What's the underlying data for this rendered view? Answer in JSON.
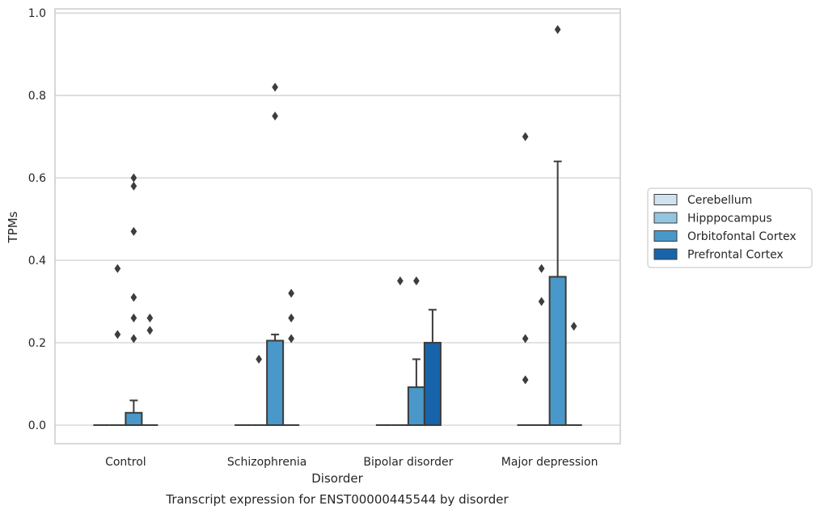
{
  "chart_data": {
    "type": "boxplot",
    "caption": "Transcript expression for ENST00000445544 by disorder",
    "xlabel": "Disorder",
    "ylabel": "TPMs",
    "ylim": [
      -0.045,
      1.01
    ],
    "yticks": [
      0.0,
      0.2,
      0.4,
      0.6,
      0.8,
      1.0
    ],
    "ytick_labels": [
      "0.0",
      "0.2",
      "0.4",
      "0.6",
      "0.8",
      "1.0"
    ],
    "grid": "horizontal",
    "legend_placement": "right",
    "categories": [
      "Control",
      "Schizophrenia",
      "Bipolar disorder",
      "Major depression"
    ],
    "series": [
      {
        "name": "Cerebellum",
        "color": "#d0e1f2",
        "boxes": [
          {
            "q1": 0,
            "median": 0,
            "q3": 0,
            "whisker_low": 0,
            "whisker_high": 0,
            "outliers": []
          },
          {
            "q1": 0,
            "median": 0,
            "q3": 0,
            "whisker_low": 0,
            "whisker_high": 0,
            "outliers": []
          },
          {
            "q1": 0,
            "median": 0,
            "q3": 0,
            "whisker_low": 0,
            "whisker_high": 0,
            "outliers": []
          },
          {
            "q1": 0,
            "median": 0,
            "q3": 0,
            "whisker_low": 0,
            "whisker_high": 0,
            "outliers": [
              0.7,
              0.21,
              0.11
            ]
          }
        ]
      },
      {
        "name": "Hipppocampus",
        "color": "#94c4df",
        "boxes": [
          {
            "q1": 0,
            "median": 0,
            "q3": 0,
            "whisker_low": 0,
            "whisker_high": 0,
            "outliers": [
              0.38,
              0.22
            ]
          },
          {
            "q1": 0,
            "median": 0,
            "q3": 0,
            "whisker_low": 0,
            "whisker_high": 0,
            "outliers": [
              0.16
            ]
          },
          {
            "q1": 0,
            "median": 0,
            "q3": 0,
            "whisker_low": 0,
            "whisker_high": 0,
            "outliers": [
              0.35
            ]
          },
          {
            "q1": 0,
            "median": 0,
            "q3": 0,
            "whisker_low": 0,
            "whisker_high": 0,
            "outliers": [
              0.38,
              0.3
            ]
          }
        ]
      },
      {
        "name": "Orbitofontal Cortex",
        "color": "#4a98c9",
        "boxes": [
          {
            "q1": 0,
            "median": 0,
            "q3": 0.03,
            "whisker_low": 0,
            "whisker_high": 0.06,
            "outliers": [
              0.6,
              0.58,
              0.47,
              0.31,
              0.26,
              0.21
            ]
          },
          {
            "q1": 0,
            "median": 0,
            "q3": 0.205,
            "whisker_low": 0,
            "whisker_high": 0.22,
            "outliers": [
              0.82,
              0.75
            ]
          },
          {
            "q1": 0,
            "median": 0,
            "q3": 0.092,
            "whisker_low": 0,
            "whisker_high": 0.16,
            "outliers": [
              0.35
            ]
          },
          {
            "q1": 0,
            "median": 0,
            "q3": 0.36,
            "whisker_low": 0,
            "whisker_high": 0.64,
            "outliers": [
              0.96
            ]
          }
        ]
      },
      {
        "name": "Prefrontal Cortex",
        "color": "#1764ab",
        "boxes": [
          {
            "q1": 0,
            "median": 0,
            "q3": 0,
            "whisker_low": 0,
            "whisker_high": 0,
            "outliers": [
              0.26,
              0.23
            ]
          },
          {
            "q1": 0,
            "median": 0,
            "q3": 0,
            "whisker_low": 0,
            "whisker_high": 0,
            "outliers": [
              0.32,
              0.26,
              0.21
            ]
          },
          {
            "q1": 0,
            "median": 0,
            "q3": 0.2,
            "whisker_low": 0,
            "whisker_high": 0.28,
            "outliers": []
          },
          {
            "q1": 0,
            "median": 0,
            "q3": 0,
            "whisker_low": 0,
            "whisker_high": 0,
            "outliers": [
              0.24
            ]
          }
        ]
      }
    ]
  }
}
